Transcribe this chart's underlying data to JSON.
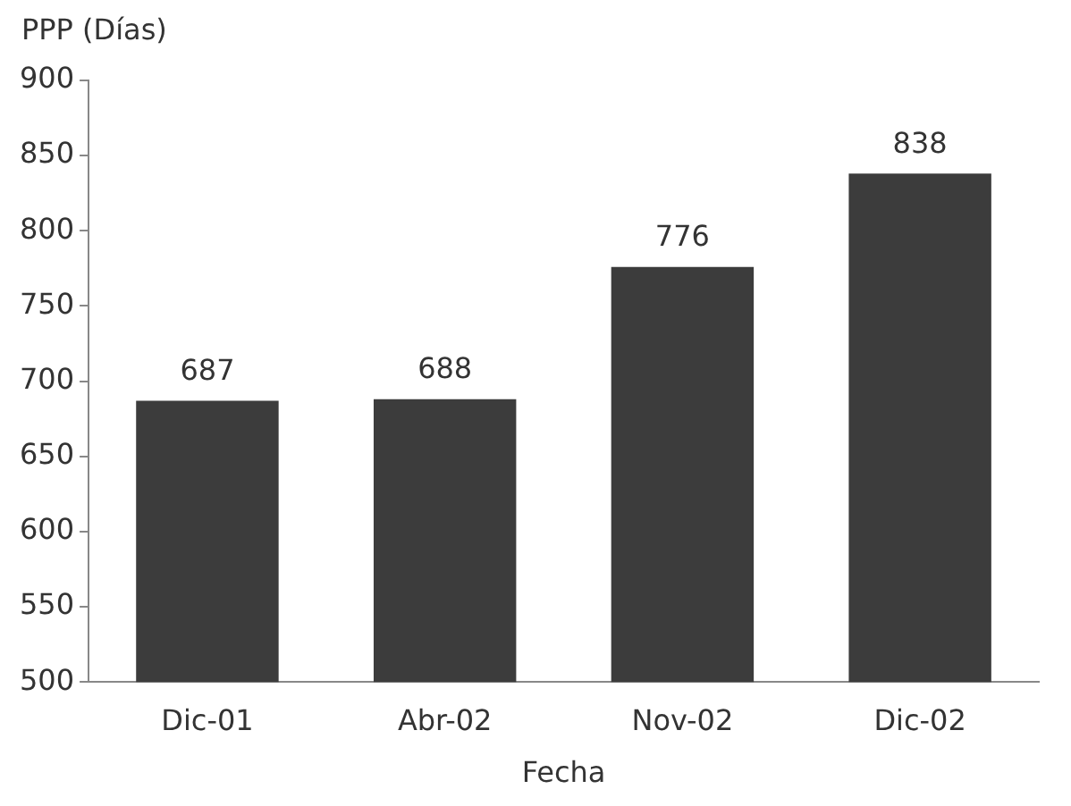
{
  "chart_data": {
    "type": "bar",
    "ylabel": "PPP (Días)",
    "xlabel": "Fecha",
    "categories": [
      "Dic-01",
      "Abr-02",
      "Nov-02",
      "Dic-02"
    ],
    "values": [
      687,
      688,
      776,
      838
    ],
    "color": "#3c3c3c",
    "ylim": [
      500,
      900
    ],
    "yticks": [
      500,
      550,
      600,
      650,
      700,
      750,
      800,
      850,
      900
    ],
    "grid": false,
    "data_labels": true
  }
}
